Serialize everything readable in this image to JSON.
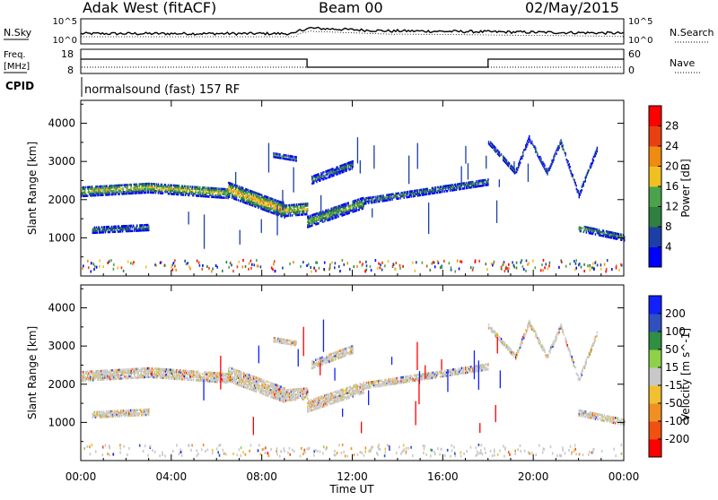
{
  "header": {
    "title_left": "Adak West (fitACF)",
    "title_center": "Beam 00",
    "title_right": "02/May/2015"
  },
  "param_panels": {
    "nsky_label": "N.Sky",
    "nsky_ticks": [
      "10^5",
      "10^0"
    ],
    "nsearch_label": "N.Search",
    "nsearch_ticks": [
      "10^5",
      "10^0"
    ],
    "freq_label_line1": "Freq.",
    "freq_label_line2": "[MHz]",
    "freq_ticks": [
      "18",
      "8"
    ],
    "nave_label": "Nave",
    "nave_ticks": [
      "60",
      "0"
    ],
    "cpid_label": "CPID",
    "cpid_text": "normalsound (fast) 157 RF",
    "freq_steps": [
      {
        "from_hour": 0,
        "to_hour": 10,
        "level": "high"
      },
      {
        "from_hour": 10,
        "to_hour": 18,
        "level": "low"
      },
      {
        "from_hour": 18,
        "to_hour": 24,
        "level": "high"
      }
    ]
  },
  "chart_data": [
    {
      "type": "heatmap",
      "name": "power",
      "ylabel": "Slant Range [km]",
      "xlabel": "Time UT",
      "xlim": [
        0,
        24
      ],
      "ylim": [
        0,
        4600
      ],
      "xticks": [
        "00:00",
        "04:00",
        "08:00",
        "12:00",
        "16:00",
        "20:00",
        "00:00"
      ],
      "yticks": [
        "1000",
        "2000",
        "3000",
        "4000"
      ],
      "colorbar": {
        "label": "Power [dB]",
        "ticks": [
          "28",
          "24",
          "20",
          "16",
          "12",
          "8",
          "4"
        ],
        "colors": [
          "#0000ff",
          "#1b3fa6",
          "#2f7f3f",
          "#4aa24a",
          "#f0c020",
          "#f08a10",
          "#e84010",
          "#ff0000"
        ]
      },
      "echo_bands": [
        {
          "start": 0.0,
          "end": 3.0,
          "range_start": 2200,
          "range_end": 2300,
          "width": 260,
          "level": 0.55
        },
        {
          "start": 3.0,
          "end": 6.5,
          "range_start": 2300,
          "range_end": 2150,
          "width": 260,
          "level": 0.55
        },
        {
          "start": 6.5,
          "end": 9.0,
          "range_start": 2250,
          "range_end": 1700,
          "width": 380,
          "level": 0.7
        },
        {
          "start": 9.0,
          "end": 10.0,
          "range_start": 1700,
          "range_end": 1750,
          "width": 300,
          "level": 0.6
        },
        {
          "start": 10.0,
          "end": 12.5,
          "range_start": 1400,
          "range_end": 1900,
          "width": 280,
          "level": 0.45
        },
        {
          "start": 12.5,
          "end": 18.0,
          "range_start": 1950,
          "range_end": 2450,
          "width": 160,
          "level": 0.3
        },
        {
          "start": 0.5,
          "end": 3.0,
          "range_start": 1180,
          "range_end": 1250,
          "width": 140,
          "level": 0.3
        },
        {
          "start": 10.2,
          "end": 12.0,
          "range_start": 2500,
          "range_end": 2900,
          "width": 200,
          "level": 0.25
        },
        {
          "start": 8.5,
          "end": 9.5,
          "range_start": 3150,
          "range_end": 3050,
          "width": 100,
          "level": 0.3
        },
        {
          "start": 22.0,
          "end": 24.0,
          "range_start": 1250,
          "range_end": 1000,
          "width": 180,
          "level": 0.3
        },
        {
          "start": 18.0,
          "end": 19.2,
          "range_start": 3500,
          "range_end": 2700,
          "width": 110,
          "level": 0.25
        },
        {
          "start": 19.2,
          "end": 19.8,
          "range_start": 2700,
          "range_end": 3600,
          "width": 110,
          "level": 0.25
        },
        {
          "start": 19.8,
          "end": 20.6,
          "range_start": 3600,
          "range_end": 2700,
          "width": 110,
          "level": 0.25
        },
        {
          "start": 20.6,
          "end": 21.2,
          "range_start": 2700,
          "range_end": 3500,
          "width": 110,
          "level": 0.25
        },
        {
          "start": 21.2,
          "end": 22.0,
          "range_start": 3500,
          "range_end": 2100,
          "width": 110,
          "level": 0.25
        },
        {
          "start": 22.0,
          "end": 22.8,
          "range_start": 2100,
          "range_end": 3300,
          "width": 110,
          "level": 0.25
        }
      ]
    },
    {
      "type": "heatmap",
      "name": "velocity",
      "ylabel": "Slant Range [km]",
      "xlabel": "Time UT",
      "xlim": [
        0,
        24
      ],
      "ylim": [
        0,
        4600
      ],
      "xticks": [
        "00:00",
        "04:00",
        "08:00",
        "12:00",
        "16:00",
        "20:00",
        "00:00"
      ],
      "yticks": [
        "1000",
        "2000",
        "3000",
        "4000"
      ],
      "colorbar": {
        "label": "Velocity [m s^-1]",
        "ticks": [
          "200",
          "100",
          "50",
          "15",
          "-15",
          "-50",
          "-100",
          "-200"
        ],
        "colors": [
          "#ff0000",
          "#f05010",
          "#f09020",
          "#f0c030",
          "#c8c8c8",
          "#8ed048",
          "#2e9040",
          "#3050c0",
          "#1020ff"
        ]
      },
      "echo_bands": [
        {
          "start": 0.0,
          "end": 3.0,
          "range_start": 2200,
          "range_end": 2300,
          "width": 260,
          "level": 0.5
        },
        {
          "start": 3.0,
          "end": 6.5,
          "range_start": 2300,
          "range_end": 2150,
          "width": 260,
          "level": 0.5
        },
        {
          "start": 6.5,
          "end": 9.0,
          "range_start": 2250,
          "range_end": 1700,
          "width": 380,
          "level": 0.5
        },
        {
          "start": 9.0,
          "end": 10.0,
          "range_start": 1700,
          "range_end": 1750,
          "width": 300,
          "level": 0.5
        },
        {
          "start": 10.0,
          "end": 12.5,
          "range_start": 1400,
          "range_end": 1900,
          "width": 280,
          "level": 0.4
        },
        {
          "start": 12.5,
          "end": 18.0,
          "range_start": 1950,
          "range_end": 2450,
          "width": 160,
          "level": 0.45
        },
        {
          "start": 0.5,
          "end": 3.0,
          "range_start": 1180,
          "range_end": 1250,
          "width": 140,
          "level": 0.5
        },
        {
          "start": 10.2,
          "end": 12.0,
          "range_start": 2500,
          "range_end": 2900,
          "width": 200,
          "level": 0.5
        },
        {
          "start": 8.5,
          "end": 9.5,
          "range_start": 3150,
          "range_end": 3050,
          "width": 100,
          "level": 0.5
        },
        {
          "start": 22.0,
          "end": 24.0,
          "range_start": 1250,
          "range_end": 1000,
          "width": 180,
          "level": 0.5
        },
        {
          "start": 18.0,
          "end": 19.2,
          "range_start": 3500,
          "range_end": 2700,
          "width": 110,
          "level": 0.55
        },
        {
          "start": 19.2,
          "end": 19.8,
          "range_start": 2700,
          "range_end": 3600,
          "width": 110,
          "level": 0.55
        },
        {
          "start": 19.8,
          "end": 20.6,
          "range_start": 3600,
          "range_end": 2700,
          "width": 110,
          "level": 0.55
        },
        {
          "start": 20.6,
          "end": 21.2,
          "range_start": 2700,
          "range_end": 3500,
          "width": 110,
          "level": 0.55
        },
        {
          "start": 21.2,
          "end": 22.0,
          "range_start": 3500,
          "range_end": 2100,
          "width": 110,
          "level": 0.55
        },
        {
          "start": 22.0,
          "end": 22.8,
          "range_start": 2100,
          "range_end": 3300,
          "width": 110,
          "level": 0.55
        }
      ]
    }
  ]
}
